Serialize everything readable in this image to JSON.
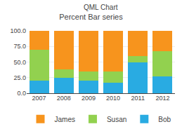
{
  "chart_data": {
    "type": "bar",
    "title": "Percent Bar series",
    "annotations": [
      {
        "text": "QML Chart"
      }
    ],
    "categories": [
      "2007",
      "2008",
      "2009",
      "2010",
      "2011",
      "2012"
    ],
    "series": [
      {
        "name": "Bob",
        "color": "#29ABE2",
        "values": [
          20,
          25,
          20,
          17,
          50,
          27
        ]
      },
      {
        "name": "Susan",
        "color": "#92D14F",
        "values": [
          50,
          13,
          15,
          18,
          10,
          40
        ]
      },
      {
        "name": "James",
        "color": "#F7941D",
        "values": [
          30,
          62,
          65,
          65,
          40,
          33
        ]
      }
    ],
    "stacked": true,
    "ylim": [
      0,
      100
    ],
    "yticks": [
      {
        "value": 0,
        "label": "0.0"
      },
      {
        "value": 25,
        "label": "25.0"
      },
      {
        "value": 50,
        "label": "50.0"
      },
      {
        "value": 75,
        "label": "75.0"
      },
      {
        "value": 100,
        "label": "100.0"
      }
    ],
    "grid": true,
    "legend": "bottom"
  }
}
